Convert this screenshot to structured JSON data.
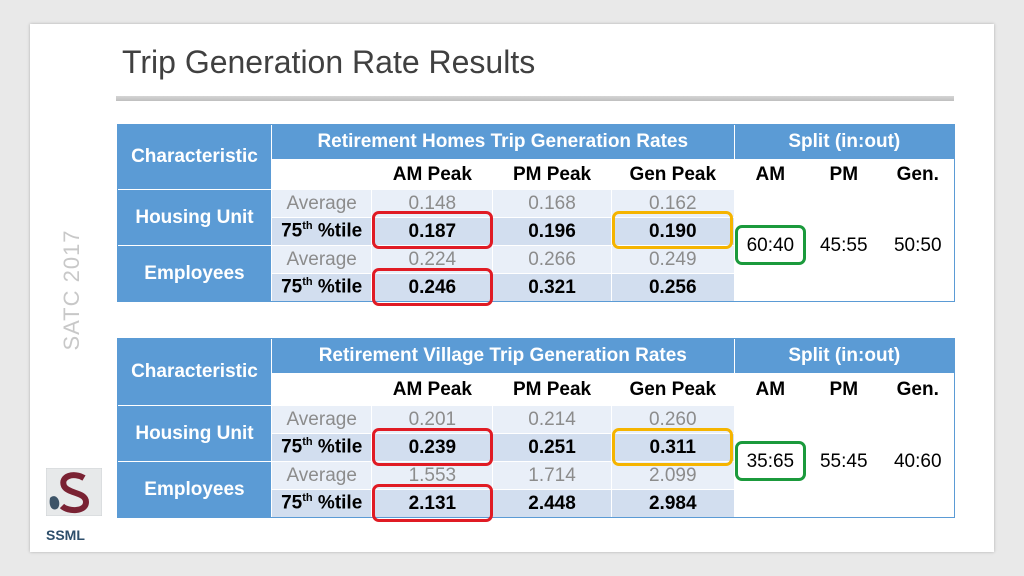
{
  "slide": {
    "title": "Trip Generation Rate Results",
    "side_label": "SATC 2017",
    "logo_text": "SSML"
  },
  "colors": {
    "header_blue": "#5b9bd5",
    "avg_row": "#e9eff8",
    "pct_row": "#d2deef",
    "highlight_red": "#e01b24",
    "highlight_orange": "#f5b400",
    "highlight_green": "#1b9a3c"
  },
  "tables": [
    {
      "characteristic": "Characteristic",
      "rates_title": "Retirement Homes Trip Generation Rates",
      "split_title": "Split (in:out)",
      "cols": [
        "AM Peak",
        "PM Peak",
        "Gen Peak"
      ],
      "split_cols": [
        "AM",
        "PM",
        "Gen."
      ],
      "groups": [
        {
          "name": "Housing Unit",
          "avg_label": "Average",
          "avg": [
            "0.148",
            "0.168",
            "0.162"
          ],
          "pct_label_a": "75",
          "pct_label_sup": "th",
          "pct_label_b": " %tile",
          "pct": [
            "0.187",
            "0.196",
            "0.190"
          ]
        },
        {
          "name": "Employees",
          "avg_label": "Average",
          "avg": [
            "0.224",
            "0.266",
            "0.249"
          ],
          "pct_label_a": "75",
          "pct_label_sup": "th",
          "pct_label_b": " %tile",
          "pct": [
            "0.246",
            "0.321",
            "0.256"
          ]
        }
      ],
      "split": [
        "60:40",
        "45:55",
        "50:50"
      ]
    },
    {
      "characteristic": "Characteristic",
      "rates_title": "Retirement Village Trip Generation Rates",
      "split_title": "Split (in:out)",
      "cols": [
        "AM Peak",
        "PM Peak",
        "Gen Peak"
      ],
      "split_cols": [
        "AM",
        "PM",
        "Gen."
      ],
      "groups": [
        {
          "name": "Housing Unit",
          "avg_label": "Average",
          "avg": [
            "0.201",
            "0.214",
            "0.260"
          ],
          "pct_label_a": "75",
          "pct_label_sup": "th",
          "pct_label_b": " %tile",
          "pct": [
            "0.239",
            "0.251",
            "0.311"
          ]
        },
        {
          "name": "Employees",
          "avg_label": "Average",
          "avg": [
            "1.553",
            "1.714",
            "2.099"
          ],
          "pct_label_a": "75",
          "pct_label_sup": "th",
          "pct_label_b": " %tile",
          "pct": [
            "2.131",
            "2.448",
            "2.984"
          ]
        }
      ],
      "split": [
        "35:65",
        "55:45",
        "40:60"
      ]
    }
  ]
}
